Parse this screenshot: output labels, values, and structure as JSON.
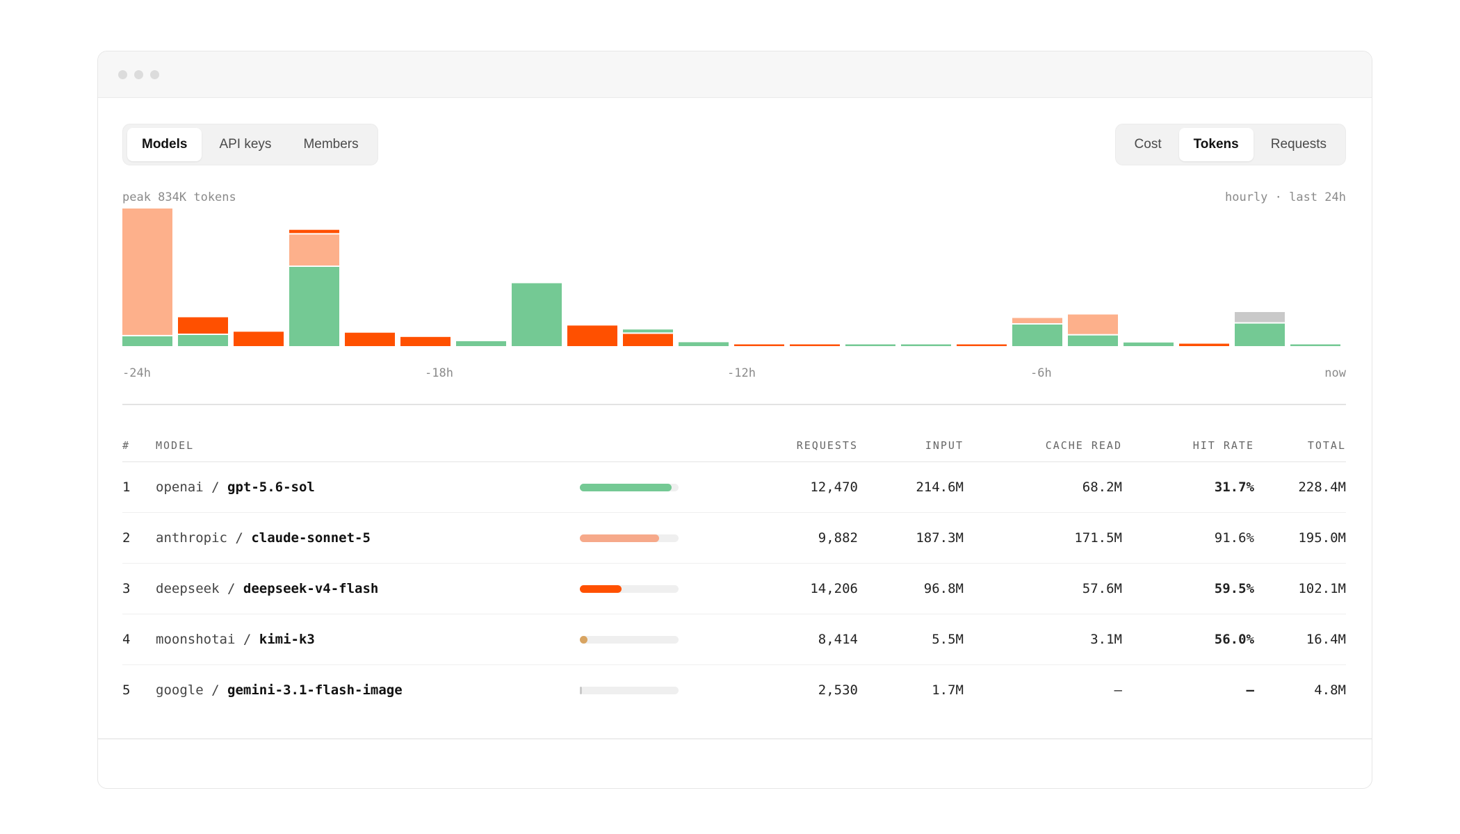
{
  "tabs_left": [
    {
      "label": "Models",
      "active": true
    },
    {
      "label": "API keys",
      "active": false
    },
    {
      "label": "Members",
      "active": false
    }
  ],
  "tabs_right": [
    {
      "label": "Cost",
      "active": false
    },
    {
      "label": "Tokens",
      "active": true
    },
    {
      "label": "Requests",
      "active": false
    }
  ],
  "chart_meta": {
    "peak_label": "peak 834K tokens",
    "range_label": "hourly · last 24h"
  },
  "colors": {
    "green": "#74c994",
    "salmon": "#fdb08b",
    "orange": "#ff5000",
    "gray": "#c9c9c9",
    "tan": "#d8a461"
  },
  "chart_data": {
    "type": "bar",
    "stacked": true,
    "x_ticks": [
      "-24h",
      "-18h",
      "-12h",
      "-6h",
      "now"
    ],
    "y_unit": "K tokens",
    "ylim": [
      0,
      834
    ],
    "series_colors": [
      "#74c994",
      "#ff5000",
      "#fdb08b",
      "#c9c9c9"
    ],
    "hours": [
      [
        {
          "c": "green",
          "v": 60
        },
        {
          "c": "salmon",
          "v": 774
        }
      ],
      [
        {
          "c": "green",
          "v": 68
        },
        {
          "c": "orange",
          "v": 100
        }
      ],
      [
        {
          "c": "orange",
          "v": 88
        }
      ],
      [
        {
          "c": "green",
          "v": 485
        },
        {
          "c": "salmon",
          "v": 190
        },
        {
          "c": "orange",
          "v": 20
        }
      ],
      [
        {
          "c": "orange",
          "v": 82
        }
      ],
      [
        {
          "c": "orange",
          "v": 56
        }
      ],
      [
        {
          "c": "green",
          "v": 30
        }
      ],
      [
        {
          "c": "green",
          "v": 385
        }
      ],
      [
        {
          "c": "orange",
          "v": 126
        }
      ],
      [
        {
          "c": "orange",
          "v": 75
        },
        {
          "c": "green",
          "v": 18
        }
      ],
      [
        {
          "c": "green",
          "v": 24
        }
      ],
      [
        {
          "c": "orange",
          "v": 10
        }
      ],
      [
        {
          "c": "orange",
          "v": 10
        }
      ],
      [
        {
          "c": "green",
          "v": 8
        }
      ],
      [
        {
          "c": "green",
          "v": 8
        }
      ],
      [
        {
          "c": "orange",
          "v": 8
        }
      ],
      [
        {
          "c": "green",
          "v": 132
        },
        {
          "c": "salmon",
          "v": 32
        }
      ],
      [
        {
          "c": "green",
          "v": 65
        },
        {
          "c": "salmon",
          "v": 120
        }
      ],
      [
        {
          "c": "green",
          "v": 22
        }
      ],
      [
        {
          "c": "orange",
          "v": 15
        }
      ],
      [
        {
          "c": "green",
          "v": 138
        },
        {
          "c": "gray",
          "v": 62
        }
      ],
      [
        {
          "c": "green",
          "v": 8
        }
      ]
    ]
  },
  "table": {
    "headers": {
      "idx": "#",
      "model": "MODEL",
      "requests": "REQUESTS",
      "input": "INPUT",
      "cache_read": "CACHE READ",
      "hit_rate": "HIT RATE",
      "total": "TOTAL"
    },
    "rows": [
      {
        "idx": "1",
        "provider": "openai",
        "sep": "/",
        "model": "gpt-5.6-sol",
        "bar": 0.93,
        "bar_color": "#74c994",
        "requests": "12,470",
        "input": "214.6M",
        "cache_read": "68.2M",
        "hit_rate": "31.7%",
        "hit_green": false,
        "total": "228.4M"
      },
      {
        "idx": "2",
        "provider": "anthropic",
        "sep": "/",
        "model": "claude-sonnet-5",
        "bar": 0.8,
        "bar_color": "#f6a98a",
        "requests": "9,882",
        "input": "187.3M",
        "cache_read": "171.5M",
        "hit_rate": "91.6%",
        "hit_green": true,
        "total": "195.0M"
      },
      {
        "idx": "3",
        "provider": "deepseek",
        "sep": "/",
        "model": "deepseek-v4-flash",
        "bar": 0.42,
        "bar_color": "#ff5000",
        "requests": "14,206",
        "input": "96.8M",
        "cache_read": "57.6M",
        "hit_rate": "59.5%",
        "hit_green": false,
        "total": "102.1M"
      },
      {
        "idx": "4",
        "provider": "moonshotai",
        "sep": "/",
        "model": "kimi-k3",
        "bar": 0.08,
        "bar_color": "#d8a461",
        "requests": "8,414",
        "input": "5.5M",
        "cache_read": "3.1M",
        "hit_rate": "56.0%",
        "hit_green": false,
        "total": "16.4M"
      },
      {
        "idx": "5",
        "provider": "google",
        "sep": "/",
        "model": "gemini-3.1-flash-image",
        "bar": 0.02,
        "bar_color": "#c9c9c9",
        "requests": "2,530",
        "input": "1.7M",
        "cache_read": "—",
        "hit_rate": "—",
        "hit_green": false,
        "total": "4.8M"
      }
    ]
  }
}
